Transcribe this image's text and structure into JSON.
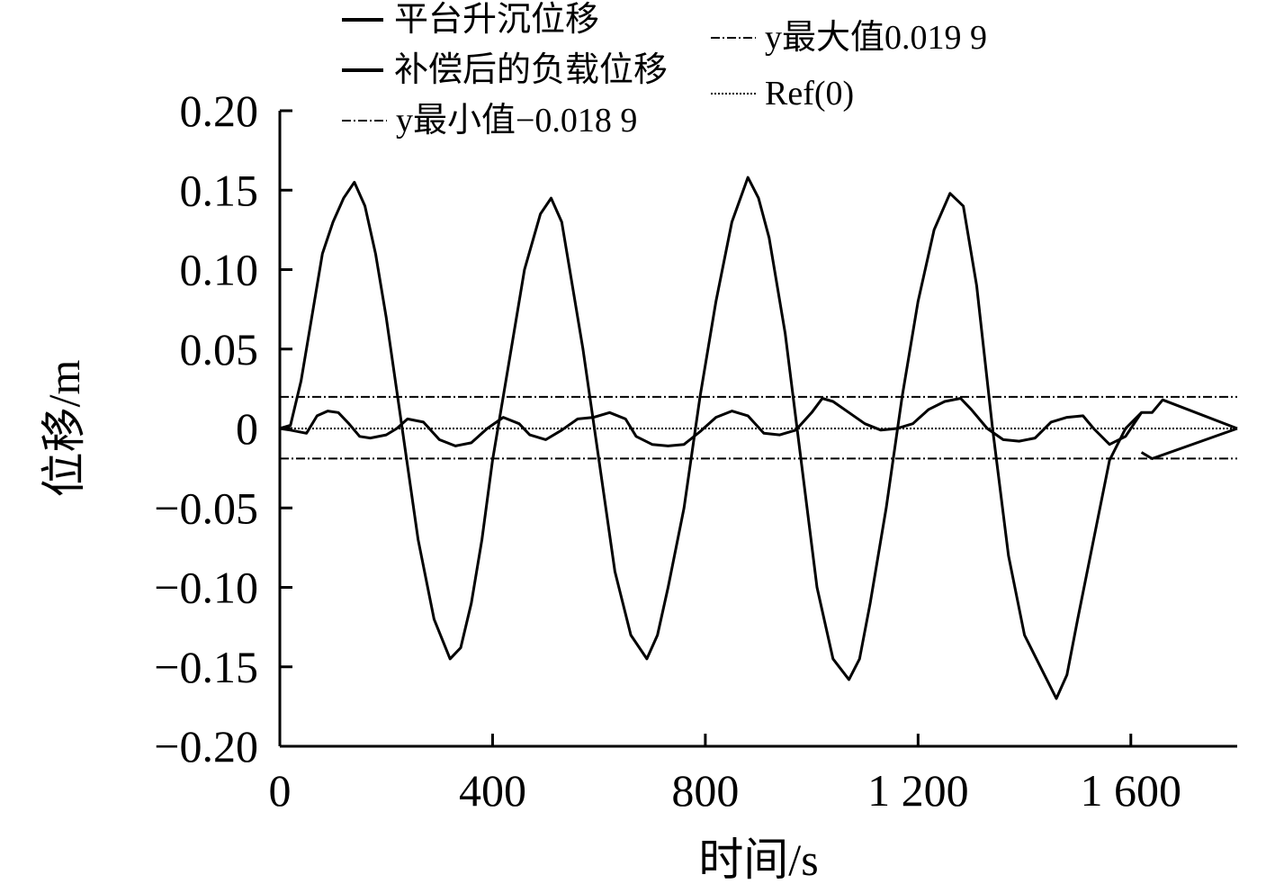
{
  "chart_data": {
    "type": "line",
    "xlabel": "时间/s",
    "ylabel": "位移/m",
    "xlim": [
      0,
      1800
    ],
    "ylim": [
      -0.2,
      0.2
    ],
    "x_ticks": [
      0,
      400,
      800,
      1200,
      1600
    ],
    "x_tick_labels": [
      "0",
      "400",
      "800",
      "1 200",
      "1 600"
    ],
    "y_ticks": [
      0.2,
      0.15,
      0.1,
      0.05,
      0,
      -0.05,
      -0.1,
      -0.15,
      -0.2
    ],
    "y_tick_labels": [
      "0.20",
      "0.15",
      "0.10",
      "0.05",
      "0",
      "−0.05",
      "−0.10",
      "−0.15",
      "−0.20"
    ],
    "grid": false,
    "legend_placement": "top",
    "series": [
      {
        "name": "平台升沉位移",
        "style": "solid",
        "color": "#000000",
        "x": [
          0,
          20,
          40,
          60,
          80,
          100,
          120,
          140,
          160,
          180,
          200,
          230,
          260,
          290,
          320,
          340,
          360,
          380,
          400,
          430,
          460,
          490,
          510,
          530,
          550,
          570,
          600,
          630,
          660,
          690,
          710,
          730,
          760,
          790,
          820,
          850,
          880,
          900,
          920,
          950,
          980,
          1010,
          1040,
          1070,
          1090,
          1110,
          1140,
          1170,
          1200,
          1230,
          1260,
          1285,
          1310,
          1340,
          1370,
          1400,
          1430,
          1460,
          1480,
          1500,
          1530,
          1560,
          1590,
          1620
        ],
        "y": [
          0,
          0.002,
          0.03,
          0.07,
          0.11,
          0.13,
          0.145,
          0.155,
          0.14,
          0.11,
          0.07,
          0.0,
          -0.07,
          -0.12,
          -0.145,
          -0.138,
          -0.11,
          -0.07,
          -0.02,
          0.04,
          0.1,
          0.135,
          0.145,
          0.13,
          0.09,
          0.05,
          -0.02,
          -0.09,
          -0.13,
          -0.145,
          -0.13,
          -0.1,
          -0.05,
          0.02,
          0.08,
          0.13,
          0.158,
          0.145,
          0.12,
          0.06,
          -0.02,
          -0.1,
          -0.145,
          -0.158,
          -0.145,
          -0.11,
          -0.05,
          0.02,
          0.08,
          0.125,
          0.148,
          0.14,
          0.09,
          0.0,
          -0.08,
          -0.13,
          -0.15,
          -0.17,
          -0.155,
          -0.12,
          -0.07,
          -0.02,
          0.0,
          0.01
        ]
      },
      {
        "name": "补偿后的负载位移",
        "style": "solid",
        "color": "#000000",
        "x": [
          0,
          20,
          50,
          70,
          90,
          110,
          130,
          150,
          170,
          200,
          220,
          240,
          270,
          300,
          330,
          360,
          390,
          420,
          450,
          470,
          500,
          530,
          560,
          590,
          620,
          650,
          670,
          700,
          730,
          760,
          790,
          820,
          850,
          880,
          910,
          940,
          970,
          1000,
          1020,
          1040,
          1070,
          1100,
          1130,
          1160,
          1190,
          1220,
          1250,
          1280,
          1300,
          1330,
          1360,
          1390,
          1420,
          1450,
          1480,
          1510,
          1530,
          1560,
          1590,
          1620,
          1640,
          1660,
          1800
        ],
        "y": [
          0,
          -0.001,
          -0.003,
          0.008,
          0.011,
          0.01,
          0.003,
          -0.005,
          -0.006,
          -0.004,
          0.0,
          0.006,
          0.004,
          -0.007,
          -0.011,
          -0.009,
          0.0,
          0.007,
          0.003,
          -0.004,
          -0.007,
          -0.001,
          0.006,
          0.007,
          0.01,
          0.006,
          -0.005,
          -0.01,
          -0.011,
          -0.01,
          -0.002,
          0.007,
          0.011,
          0.008,
          -0.003,
          -0.004,
          -0.001,
          0.01,
          0.019,
          0.017,
          0.01,
          0.003,
          -0.001,
          0.0,
          0.003,
          0.012,
          0.017,
          0.019,
          0.012,
          0.0,
          -0.007,
          -0.008,
          -0.006,
          0.004,
          0.007,
          0.008,
          0.0,
          -0.01,
          -0.005,
          0.01,
          0.01,
          0.018,
          0.0
        ]
      },
      {
        "name": "y最小值−0.018 9",
        "style": "dashdot",
        "color": "#000000",
        "x": [
          0,
          1800
        ],
        "y": [
          -0.0189,
          -0.0189
        ]
      },
      {
        "name": "y最大值0.019 9",
        "style": "dashdot",
        "color": "#000000",
        "x": [
          0,
          1800
        ],
        "y": [
          0.0199,
          0.0199
        ]
      },
      {
        "name": "Ref(0)",
        "style": "dotted",
        "color": "#000000",
        "x": [
          0,
          1800
        ],
        "y": [
          0,
          0
        ]
      }
    ],
    "extra_segments": [
      {
        "name": "补偿后的负载位移",
        "x": [
          1620,
          1640,
          1800
        ],
        "y": [
          -0.015,
          -0.019,
          0.0
        ]
      }
    ]
  },
  "legend": {
    "col1": [
      "平台升沉位移",
      "补偿后的负载位移",
      "y最小值−0.018 9"
    ],
    "col2": [
      "y最大值0.019 9",
      "Ref(0)"
    ]
  }
}
